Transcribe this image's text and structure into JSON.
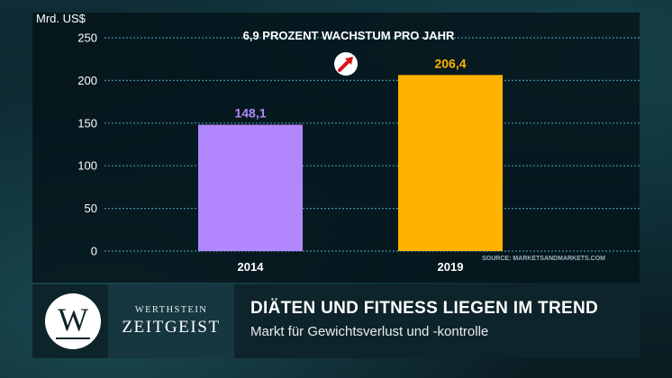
{
  "chart_data": {
    "type": "bar",
    "title": "6,9 PROZENT WACHSTUM PRO JAHR",
    "ylabel": "Mrd. US$",
    "categories": [
      "2014",
      "2019"
    ],
    "values": [
      148.1,
      206.4
    ],
    "value_labels": [
      "148,1",
      "206,4"
    ],
    "bar_colors": [
      "#b388ff",
      "#ffb300"
    ],
    "ylim": [
      0,
      250
    ],
    "yticks": [
      0,
      50,
      100,
      150,
      200,
      250
    ],
    "grid": true,
    "source": "SOURCE: MARKETSANDMARKETS.COM"
  },
  "colors": {
    "arrow": "#d8141b",
    "gridline": "#3e8fa6",
    "text": "#ffffff"
  },
  "icons": {
    "growth": "growth-arrow-icon"
  },
  "brand": {
    "logo_letter": "W",
    "name_top": "WERTHSTEIN",
    "name_bottom": "ZEITGEIST"
  },
  "caption": {
    "headline": "DIÄTEN UND FITNESS LIEGEN IM TREND",
    "subline": "Markt für Gewichtsverlust und -kontrolle"
  }
}
